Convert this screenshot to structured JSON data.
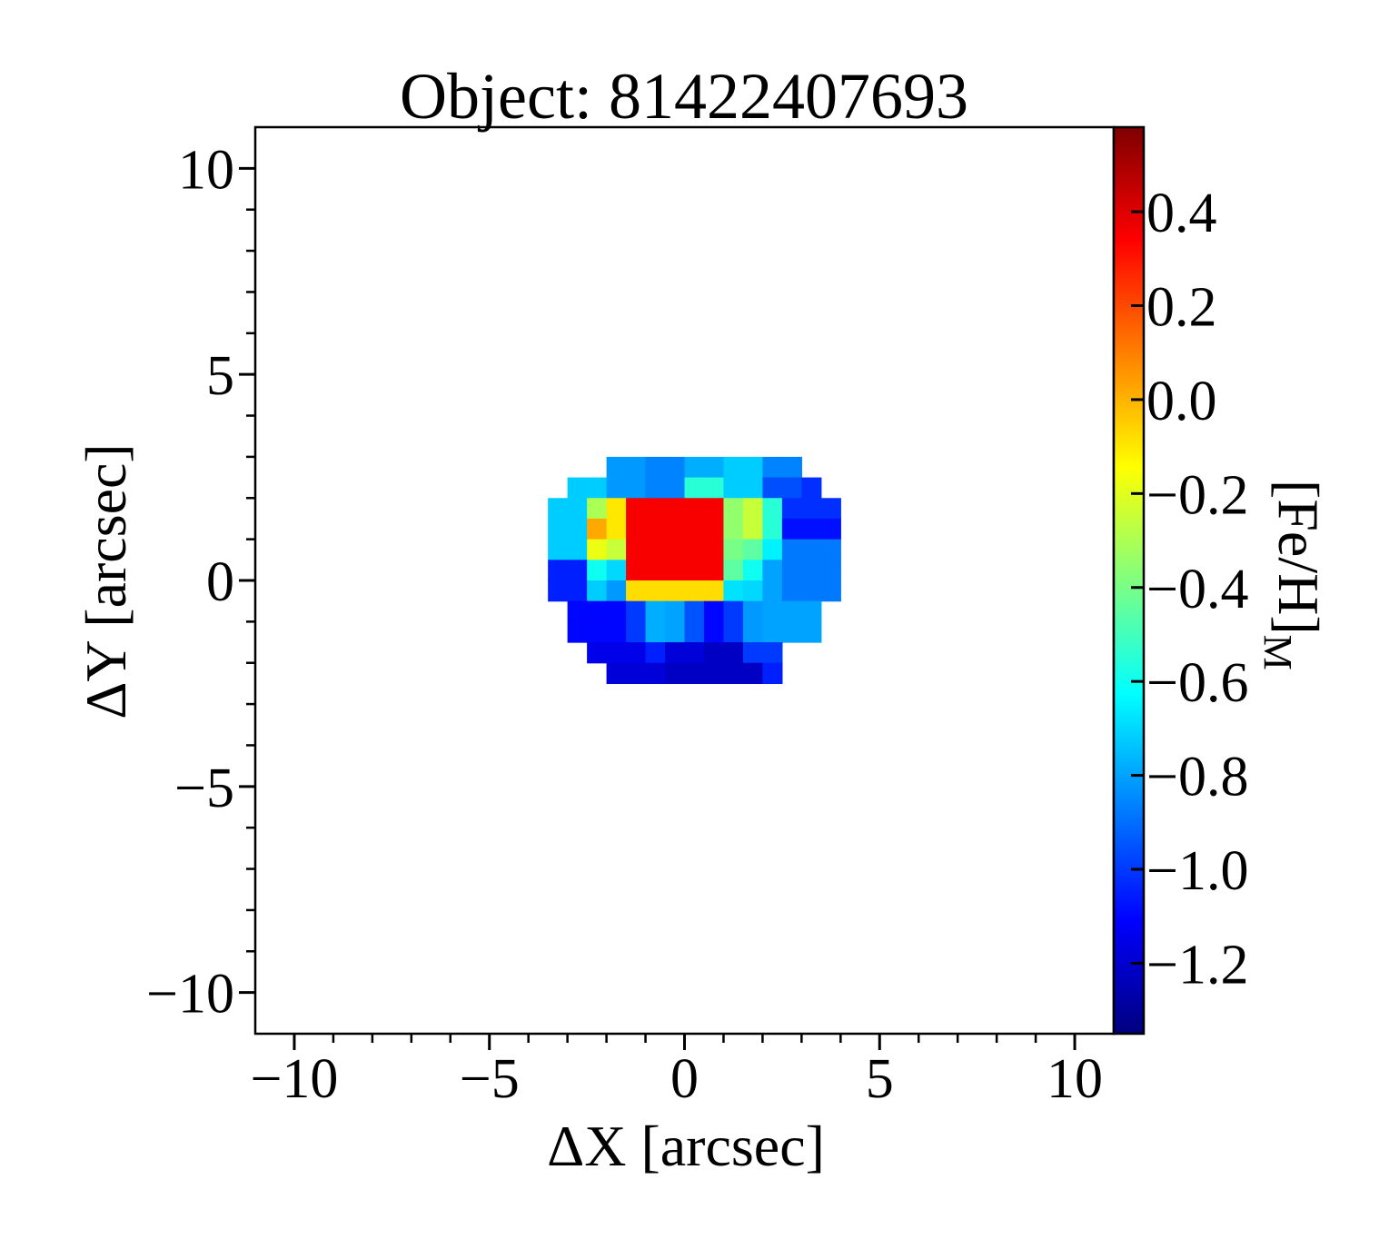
{
  "chart_data": {
    "type": "heatmap",
    "title": "Object: 81422407693",
    "xlabel": "ΔX [arcsec]",
    "ylabel": "ΔY [arcsec]",
    "colorbar_label": "[Fe/H]",
    "colorbar_label_subscript": "M",
    "xlim": [
      -11,
      11
    ],
    "ylim": [
      -11,
      11
    ],
    "xticks": [
      -10,
      -5,
      0,
      5,
      10
    ],
    "yticks": [
      -10,
      -5,
      0,
      5,
      10
    ],
    "xtick_labels": [
      "−10",
      "−5",
      "0",
      "5",
      "10"
    ],
    "ytick_labels": [
      "−10",
      "−5",
      "0",
      "5",
      "10"
    ],
    "colorbar_range": [
      -1.35,
      0.58
    ],
    "colorbar_ticks": [
      0.4,
      0.2,
      0.0,
      -0.2,
      -0.4,
      -0.6,
      -0.8,
      -1.0,
      -1.2
    ],
    "colorbar_tick_labels": [
      "0.4",
      "0.2",
      "0.0",
      "−0.2",
      "−0.4",
      "−0.6",
      "−0.8",
      "−1.0",
      "−1.2"
    ],
    "colormap": "jet",
    "grid": false,
    "spaxel_size": 0.5,
    "map": {
      "x_start": -3.25,
      "y_start": 2.75,
      "columns": 15,
      "rows": 11,
      "values": [
        [
          null,
          null,
          null,
          -0.82,
          -0.82,
          -0.86,
          -0.86,
          -0.78,
          -0.78,
          -0.72,
          -0.72,
          -0.86,
          -0.86,
          null,
          null
        ],
        [
          null,
          -0.72,
          -0.72,
          -0.82,
          -0.82,
          -0.86,
          -0.86,
          -0.55,
          -0.55,
          -0.72,
          -0.72,
          -0.96,
          -0.96,
          -1.02,
          null
        ],
        [
          -0.72,
          -0.72,
          -0.3,
          -0.1,
          0.35,
          0.35,
          0.35,
          0.35,
          0.35,
          -0.35,
          -0.25,
          -0.55,
          -1.02,
          -1.02,
          -1.02
        ],
        [
          -0.72,
          -0.72,
          0.02,
          -0.1,
          0.35,
          0.35,
          0.35,
          0.35,
          0.35,
          -0.35,
          -0.25,
          -0.55,
          -1.08,
          -1.08,
          -1.08
        ],
        [
          -0.72,
          -0.72,
          -0.18,
          -0.25,
          0.35,
          0.35,
          0.35,
          0.35,
          0.35,
          -0.4,
          -0.45,
          -0.65,
          -0.88,
          -0.88,
          -0.88
        ],
        [
          -1.05,
          -1.05,
          -0.6,
          -0.7,
          0.35,
          0.35,
          0.35,
          0.35,
          0.35,
          -0.45,
          -0.6,
          -0.8,
          -0.88,
          -0.88,
          -0.88
        ],
        [
          -1.05,
          -1.05,
          -0.72,
          -0.82,
          -0.08,
          -0.08,
          -0.08,
          -0.08,
          -0.08,
          -0.68,
          -0.7,
          -0.8,
          -0.88,
          -0.88,
          -0.88
        ],
        [
          null,
          -1.1,
          -1.1,
          -1.1,
          -1.0,
          -0.78,
          -0.8,
          -0.95,
          -1.1,
          -1.0,
          -0.82,
          -0.8,
          -0.8,
          -0.8,
          null
        ],
        [
          null,
          -1.1,
          -1.1,
          -1.1,
          -1.0,
          -0.78,
          -0.8,
          -0.95,
          -1.1,
          -1.0,
          -0.82,
          -0.8,
          -0.8,
          -0.8,
          null
        ],
        [
          null,
          null,
          -1.15,
          -1.15,
          -1.15,
          -1.05,
          -1.18,
          -1.18,
          -1.22,
          -1.22,
          -1.0,
          -1.0,
          null,
          null,
          null
        ],
        [
          null,
          null,
          null,
          -1.18,
          -1.18,
          -1.18,
          -1.22,
          -1.22,
          -1.22,
          -1.22,
          -1.22,
          -1.05,
          null,
          null,
          null
        ]
      ]
    }
  }
}
